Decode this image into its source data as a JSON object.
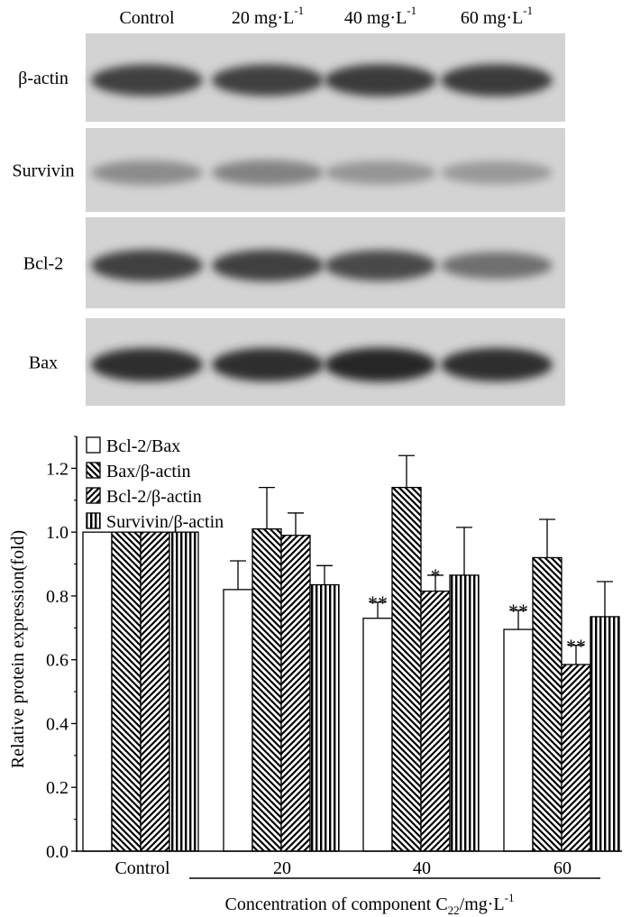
{
  "blot": {
    "lane_labels": [
      "Control",
      "20 mg·L",
      "40 mg·L",
      "60 mg·L"
    ],
    "lane_label_superscript": "-1",
    "rows": [
      {
        "label": "β-actin",
        "band_intensity": [
          0.85,
          0.85,
          0.88,
          0.88
        ]
      },
      {
        "label": "Survivin",
        "band_intensity": [
          0.45,
          0.5,
          0.4,
          0.38
        ]
      },
      {
        "label": "Bcl-2",
        "band_intensity": [
          0.85,
          0.85,
          0.8,
          0.6
        ]
      },
      {
        "label": "Bax",
        "band_intensity": [
          0.95,
          0.95,
          0.98,
          0.95
        ]
      }
    ]
  },
  "chart_data": {
    "type": "bar",
    "categories": [
      "Control",
      "20",
      "40",
      "60"
    ],
    "ylabel": "Relative protein expression(fold)",
    "xlabel_main": "Concentration of component C",
    "xlabel_sub": "22",
    "xlabel_unit": "/mg·L",
    "xlabel_sup": "-1",
    "ylim": [
      0.0,
      1.3
    ],
    "yticks": [
      "0.0",
      "0.2",
      "0.4",
      "0.6",
      "0.8",
      "1.0",
      "1.2"
    ],
    "legend_position": "top-left",
    "series": [
      {
        "name": "Bcl-2/Bax",
        "pattern": "blank",
        "values": [
          1.0,
          0.82,
          0.73,
          0.695
        ],
        "errors": [
          0,
          0.09,
          0.05,
          0.06
        ],
        "annotations": [
          "",
          "",
          "**",
          "**"
        ]
      },
      {
        "name": "Bax/β-actin",
        "pattern": "back-diagonal",
        "values": [
          1.0,
          1.01,
          1.14,
          0.92
        ],
        "errors": [
          0,
          0.13,
          0.1,
          0.12
        ],
        "annotations": [
          "",
          "",
          "",
          ""
        ]
      },
      {
        "name": "Bcl-2/β-actin",
        "pattern": "diagonal",
        "values": [
          1.0,
          0.99,
          0.815,
          0.585
        ],
        "errors": [
          0,
          0.07,
          0.05,
          0.06
        ],
        "annotations": [
          "",
          "",
          "*",
          "**"
        ]
      },
      {
        "name": "Survivin/β-actin",
        "pattern": "vertical",
        "values": [
          1.0,
          0.835,
          0.865,
          0.735
        ],
        "errors": [
          0,
          0.06,
          0.15,
          0.11
        ],
        "annotations": [
          "",
          "",
          "",
          ""
        ]
      }
    ]
  }
}
